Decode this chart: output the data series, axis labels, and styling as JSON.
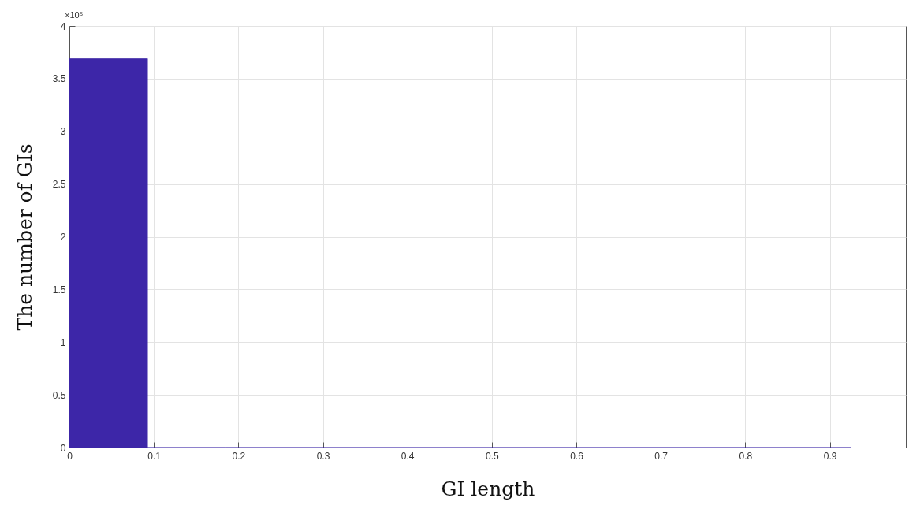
{
  "chart_data": {
    "type": "histogram",
    "xlabel": "GI length",
    "ylabel": "The number of GIs",
    "annotations": [
      "×10⁵"
    ],
    "bins": [
      0,
      0.0925,
      0.185,
      0.2775,
      0.37,
      0.4625,
      0.555,
      0.6475,
      0.74,
      0.8325,
      0.925
    ],
    "values": [
      3.69,
      0,
      0,
      0,
      0,
      0,
      0,
      0,
      0,
      0
    ],
    "color": "#3d26a8",
    "xlim": [
      0,
      0.99
    ],
    "xticks": [
      0,
      0.1,
      0.2,
      0.3,
      0.4,
      0.5,
      0.6,
      0.7,
      0.8,
      0.9
    ],
    "ylim": [
      0,
      4
    ],
    "yticks": [
      0,
      0.5,
      1,
      1.5,
      2,
      2.5,
      3,
      3.5,
      4
    ],
    "grid": true
  }
}
